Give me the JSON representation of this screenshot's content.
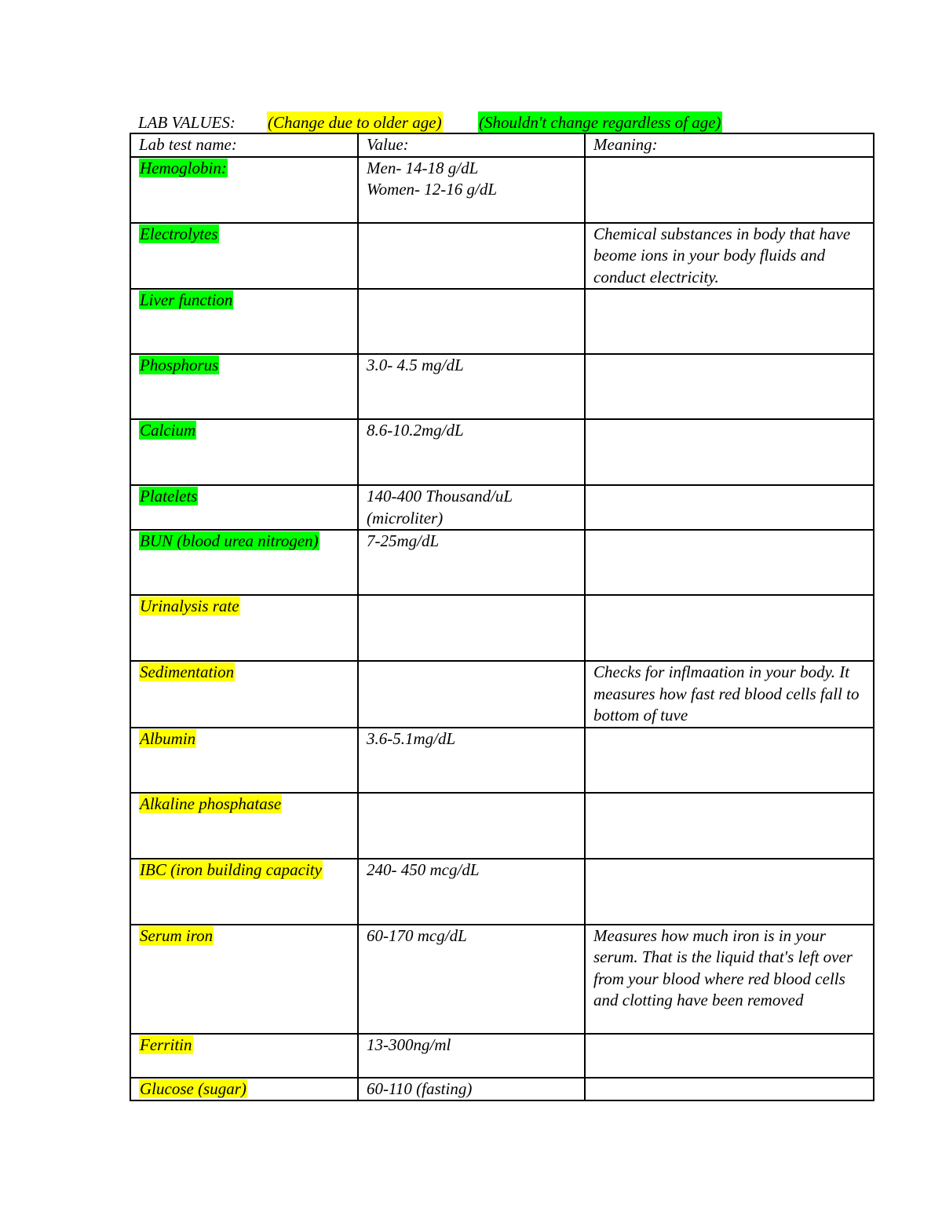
{
  "header": {
    "title": "LAB VALUES:",
    "legend": [
      {
        "text": "(Change due to older age)",
        "highlight": "#ffff00"
      },
      {
        "text": "(Shouldn't change regardless of age)",
        "highlight": "#00ff00"
      }
    ]
  },
  "table": {
    "columns": [
      "Lab test name:",
      "Value:",
      "Meaning:"
    ],
    "rows": [
      {
        "name": "Hemoglobin:",
        "highlight": "#00ff00",
        "value": [
          "Men- 14-18 g/dL",
          "Women- 12-16 g/dL"
        ]
      },
      {
        "name": "Electrolytes",
        "highlight": "#00ff00",
        "meaning": "Chemical substances in body that have beome ions in your body fluids and conduct electricity."
      },
      {
        "name": "Liver function",
        "highlight": "#00ff00"
      },
      {
        "name": "Phosphorus",
        "highlight": "#00ff00",
        "value": [
          "3.0- 4.5 mg/dL"
        ]
      },
      {
        "name": "Calcium",
        "highlight": "#00ff00",
        "value": [
          "8.6-10.2mg/dL"
        ]
      },
      {
        "name": "Platelets",
        "highlight": "#00ff00",
        "value": [
          "140-400 Thousand/uL (microliter)"
        ]
      },
      {
        "name": "BUN (blood urea nitrogen)",
        "highlight": "#00ff00",
        "value": [
          "7-25mg/dL"
        ]
      },
      {
        "name": "Urinalysis rate",
        "highlight": "#ffff00"
      },
      {
        "name": "Sedimentation",
        "highlight": "#ffff00",
        "meaning": "Checks for inflmaation in your body. It measures how fast red blood cells fall to bottom of tuve"
      },
      {
        "name": "Albumin",
        "highlight": "#ffff00",
        "value": [
          "3.6-5.1mg/dL"
        ]
      },
      {
        "name": "Alkaline phosphatase",
        "highlight": "#ffff00"
      },
      {
        "name": "IBC (iron building capacity",
        "highlight": "#ffff00",
        "value": [
          "240- 450 mcg/dL"
        ]
      },
      {
        "name": "Serum iron",
        "highlight": "#ffff00",
        "value": [
          "60-170 mcg/dL"
        ],
        "meaning": "Measures how much iron is in your serum. That is the liquid that's left over from your blood where red blood cells and clotting have been removed"
      },
      {
        "name": "Ferritin",
        "highlight": "#ffff00",
        "value": [
          "13-300ng/ml"
        ]
      },
      {
        "name": "Glucose (sugar)",
        "highlight": "#ffff00",
        "value": [
          "60-110 (fasting)"
        ]
      }
    ]
  }
}
